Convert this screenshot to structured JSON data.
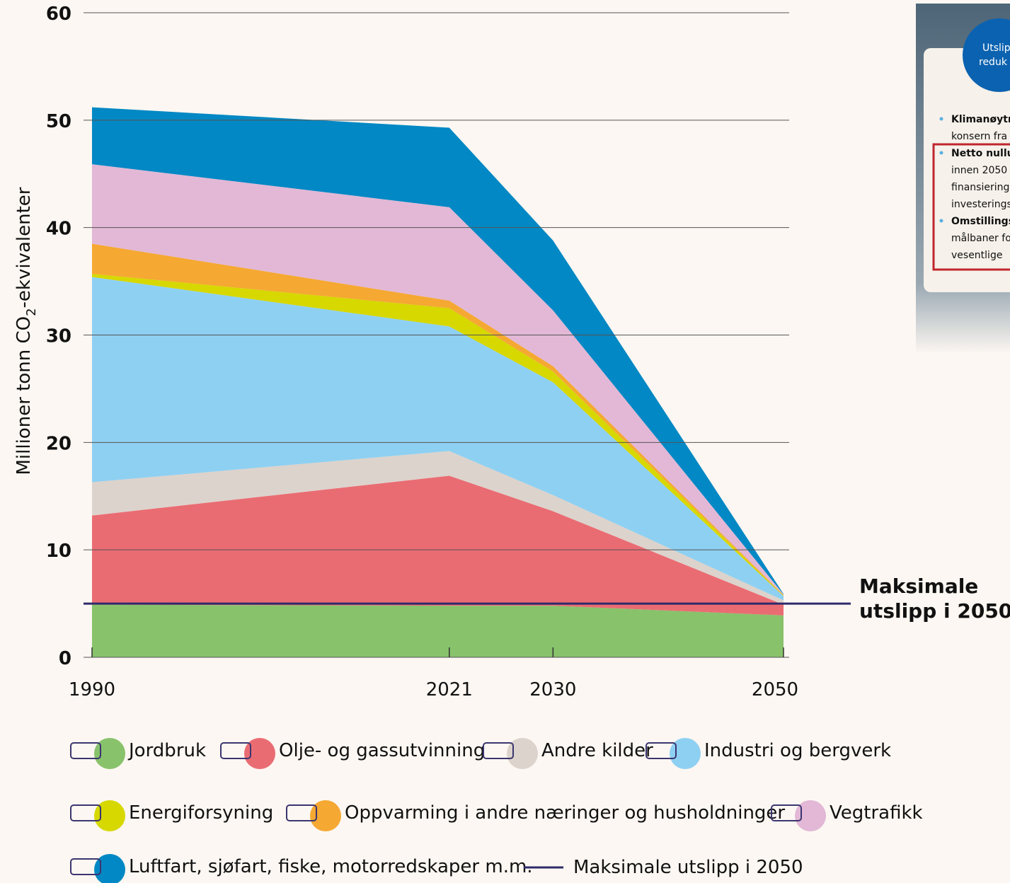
{
  "chart_data": {
    "type": "stacked_area",
    "y_label_parts": [
      "Millioner tonn CO",
      "2",
      "-ekvivalenter"
    ],
    "x": [
      1990,
      2021,
      2030,
      2050
    ],
    "xlim": [
      1990,
      2050
    ],
    "xticks": [
      1990,
      2021,
      2030,
      2050
    ],
    "ylim": [
      0,
      60
    ],
    "yticks": [
      0,
      10,
      20,
      30,
      40,
      50,
      60
    ],
    "grid": true,
    "series": [
      {
        "name": "Jordbruk",
        "color": "#88c26b",
        "values": [
          4.9,
          4.8,
          4.8,
          3.9
        ]
      },
      {
        "name": "Olje- og gassutvinning",
        "color": "#ea6c73",
        "values": [
          8.3,
          12.1,
          8.8,
          1.0
        ]
      },
      {
        "name": "Andre kilder",
        "color": "#dcd3cc",
        "values": [
          3.1,
          2.3,
          1.5,
          0.4
        ]
      },
      {
        "name": "Industri og bergverk",
        "color": "#8ed0f2",
        "values": [
          19.1,
          11.6,
          10.5,
          0.4
        ]
      },
      {
        "name": "Energiforsyning",
        "color": "#d6d800",
        "values": [
          0.3,
          1.7,
          1.0,
          0.05
        ]
      },
      {
        "name": "Oppvarming i andre næringer og husholdninger",
        "color": "#f5a832",
        "values": [
          2.8,
          0.7,
          0.5,
          0.05
        ]
      },
      {
        "name": "Vegtrafikk",
        "color": "#e2b8d6",
        "values": [
          7.4,
          8.7,
          5.2,
          0.05
        ]
      },
      {
        "name": "Luftfart, sjøfart, fiske, motorredskaper m.m.",
        "color": "#0288c4",
        "values": [
          5.3,
          7.4,
          6.5,
          0.05
        ]
      }
    ],
    "reference_line": {
      "name": "Maksimale utslipp i 2050",
      "value": 5,
      "color": "#2e2a6b"
    },
    "annotation": [
      "Maksimale",
      "utslipp i 2050"
    ]
  },
  "side_panel": {
    "badge": [
      "Utslip",
      "reduk"
    ],
    "lines": [
      "Klimanøytr",
      "konsern fra",
      "Netto nullu",
      "innen 2050",
      "finansiering",
      "investerings",
      "Omstillings",
      "målbaner fo",
      "vesentlige"
    ]
  }
}
